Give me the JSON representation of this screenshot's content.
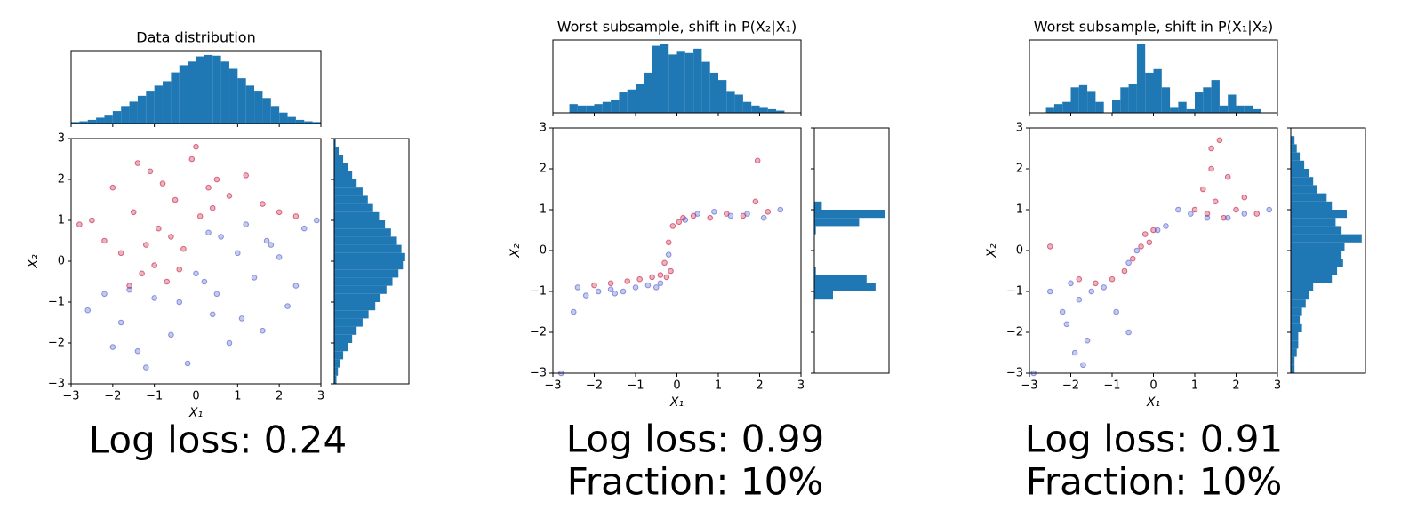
{
  "chart_data": [
    {
      "type": "scatter",
      "title": "Data distribution",
      "xlabel": "X₁",
      "ylabel": "X₂",
      "xlim": [
        -3,
        3
      ],
      "ylim": [
        -3,
        3
      ],
      "xticks": [
        {
          "value": -3,
          "label": "−3"
        },
        {
          "value": -2,
          "label": "−2"
        },
        {
          "value": -1,
          "label": "−1"
        },
        0,
        1,
        2,
        3
      ],
      "yticks": [
        {
          "value": -3,
          "label": "−3"
        },
        {
          "value": -2,
          "label": "−2"
        },
        {
          "value": -1,
          "label": "−1"
        },
        0,
        1,
        2,
        3
      ],
      "series": [
        {
          "color": "#c0002a",
          "x": [
            -2.5,
            -2.2,
            -2,
            -1.8,
            -1.5,
            -1.3,
            -1.1,
            -0.9,
            -0.7,
            -0.5,
            -0.3,
            -0.1,
            0.1,
            0.3,
            0.5,
            -2.8,
            -1.6,
            -1.2,
            -0.8,
            -0.4,
            0,
            0.4,
            0.8,
            1.2,
            1.6,
            2.0,
            2.4,
            -0.6,
            -1.0,
            -1.4
          ],
          "y": [
            1.0,
            0.5,
            1.8,
            0.2,
            1.2,
            -0.3,
            2.2,
            0.8,
            -0.5,
            1.5,
            0.3,
            2.5,
            1.1,
            1.8,
            2.0,
            0.9,
            -0.6,
            0.4,
            1.9,
            -0.2,
            2.8,
            1.3,
            1.6,
            2.1,
            1.4,
            1.2,
            1.1,
            0.6,
            -0.1,
            2.4
          ]
        },
        {
          "color": "#3a4bc8",
          "x": [
            -2.6,
            -2.2,
            -1.8,
            -1.4,
            -1,
            -0.6,
            -0.2,
            0.2,
            0.6,
            1,
            1.4,
            1.8,
            2.2,
            2.6,
            0.4,
            0.8,
            1.2,
            1.6,
            2,
            -1.2,
            -0.4,
            0,
            0.5,
            1.1,
            1.7,
            2.4,
            2.9,
            -2,
            -1.6,
            0.3
          ],
          "y": [
            -1.2,
            -0.8,
            -1.5,
            -2.2,
            -0.9,
            -1.8,
            -2.5,
            -0.5,
            0.6,
            0.2,
            -0.4,
            0.4,
            -1.1,
            0.8,
            -1.3,
            -2.0,
            0.9,
            -1.7,
            0.1,
            -2.6,
            -1.0,
            -0.3,
            -0.8,
            -1.4,
            0.5,
            -0.6,
            1.0,
            -2.1,
            -0.7,
            0.7
          ]
        }
      ],
      "top_histogram": {
        "color": "#1f77b4",
        "ylim": [
          0,
          100
        ],
        "bins": [
          -3,
          -2.8,
          -2.6,
          -2.4,
          -2.2,
          -2,
          -1.8,
          -1.6,
          -1.4,
          -1.2,
          -1,
          -0.8,
          -0.6,
          -0.4,
          -0.2,
          0,
          0.2,
          0.4,
          0.6,
          0.8,
          1,
          1.2,
          1.4,
          1.6,
          1.8,
          2,
          2.2,
          2.4,
          2.6,
          2.8,
          3
        ],
        "counts": [
          2,
          3,
          5,
          8,
          12,
          17,
          24,
          30,
          38,
          45,
          52,
          58,
          70,
          80,
          85,
          92,
          94,
          93,
          85,
          75,
          62,
          52,
          45,
          35,
          24,
          15,
          9,
          5,
          3,
          2
        ]
      },
      "right_histogram": {
        "color": "#1f77b4",
        "xlim": [
          0,
          100
        ],
        "bins": [
          -3,
          -2.8,
          -2.6,
          -2.4,
          -2.2,
          -2,
          -1.8,
          -1.6,
          -1.4,
          -1.2,
          -1,
          -0.8,
          -0.6,
          -0.4,
          -0.2,
          0,
          0.2,
          0.4,
          0.6,
          0.8,
          1,
          1.2,
          1.4,
          1.6,
          1.8,
          2,
          2.2,
          2.4,
          2.6,
          2.8,
          3
        ],
        "counts": [
          3,
          5,
          8,
          12,
          18,
          24,
          30,
          38,
          46,
          55,
          62,
          70,
          78,
          86,
          92,
          95,
          90,
          84,
          76,
          68,
          60,
          52,
          45,
          38,
          30,
          24,
          18,
          12,
          6,
          2
        ]
      },
      "captions": [
        "Log loss: 0.24"
      ]
    },
    {
      "type": "scatter",
      "title": "Worst subsample, shift in P(X₂|X₁)",
      "xlabel": "X₁",
      "ylabel": "X₂",
      "xlim": [
        -3,
        3
      ],
      "ylim": [
        -3,
        3
      ],
      "xticks": [
        {
          "value": -3,
          "label": "−3"
        },
        {
          "value": -2,
          "label": "−2"
        },
        {
          "value": -1,
          "label": "−1"
        },
        0,
        1,
        2,
        3
      ],
      "yticks": [
        {
          "value": -3,
          "label": "−3"
        },
        {
          "value": -2,
          "label": "−2"
        },
        {
          "value": -1,
          "label": "−1"
        },
        0,
        1,
        2,
        3
      ],
      "series": [
        {
          "color": "#c0002a",
          "x": [
            -2.0,
            -1.6,
            -1.2,
            -0.9,
            -0.6,
            -0.4,
            -0.3,
            -0.2,
            -0.15,
            -0.1,
            0.05,
            0.15,
            0.4,
            0.8,
            1.2,
            1.6,
            1.9,
            2.2,
            1.95,
            -0.25
          ],
          "y": [
            -0.85,
            -0.8,
            -0.75,
            -0.7,
            -0.65,
            -0.6,
            -0.3,
            0.2,
            -0.5,
            0.6,
            0.7,
            0.8,
            0.85,
            0.8,
            0.9,
            0.85,
            1.2,
            0.95,
            2.2,
            -0.65
          ]
        },
        {
          "color": "#3a4bc8",
          "x": [
            -2.8,
            -2.5,
            -2.2,
            -1.9,
            -1.6,
            -1.3,
            -1.0,
            -0.7,
            -0.4,
            -0.2,
            0.2,
            0.5,
            0.9,
            1.3,
            1.7,
            2.1,
            2.5,
            -2.4,
            -1.5,
            -0.5
          ],
          "y": [
            -3.0,
            -1.5,
            -1.1,
            -1.0,
            -0.95,
            -1.0,
            -0.9,
            -0.85,
            -0.8,
            -0.1,
            0.75,
            0.9,
            0.95,
            0.85,
            0.9,
            0.8,
            1.0,
            -0.9,
            -1.05,
            -0.9
          ]
        }
      ],
      "top_histogram": {
        "color": "#1f77b4",
        "ylim": [
          0,
          100
        ],
        "bins": [
          -2.6,
          -2.4,
          -2.2,
          -2,
          -1.8,
          -1.6,
          -1.4,
          -1.2,
          -1,
          -0.8,
          -0.6,
          -0.4,
          -0.2,
          0,
          0.2,
          0.4,
          0.6,
          0.8,
          1,
          1.2,
          1.4,
          1.6,
          1.8,
          2,
          2.2,
          2.4,
          2.6
        ],
        "counts": [
          12,
          10,
          10,
          12,
          15,
          18,
          28,
          32,
          40,
          55,
          92,
          95,
          80,
          85,
          82,
          88,
          70,
          55,
          45,
          30,
          25,
          15,
          10,
          8,
          5,
          3
        ]
      },
      "right_histogram": {
        "color": "#1f77b4",
        "xlim": [
          0,
          100
        ],
        "bins": [
          -1.2,
          -1,
          -0.8,
          -0.6,
          -0.4,
          -0.2,
          0,
          0.2,
          0.4,
          0.6,
          0.8,
          1,
          1.2
        ],
        "counts": [
          25,
          82,
          70,
          2,
          0,
          0,
          0,
          0,
          2,
          60,
          95,
          10
        ]
      },
      "captions": [
        "Log loss: 0.99",
        "Fraction: 10%"
      ]
    },
    {
      "type": "scatter",
      "title": "Worst subsample, shift in P(X₁|X₂)",
      "xlabel": "X₁",
      "ylabel": "X₂",
      "xlim": [
        -3,
        3
      ],
      "ylim": [
        -3,
        3
      ],
      "xticks": [
        {
          "value": -3,
          "label": "−3"
        },
        {
          "value": -2,
          "label": "−2"
        },
        {
          "value": -1,
          "label": "−1"
        },
        0,
        1,
        2,
        3
      ],
      "yticks": [
        {
          "value": -3,
          "label": "−3"
        },
        {
          "value": -2,
          "label": "−2"
        },
        {
          "value": -1,
          "label": "−1"
        },
        0,
        1,
        2,
        3
      ],
      "series": [
        {
          "color": "#c0002a",
          "x": [
            -2.5,
            -1.8,
            -1.4,
            -1.0,
            -0.7,
            -0.5,
            -0.3,
            -0.2,
            -0.1,
            0.0,
            1.0,
            1.2,
            1.4,
            1.5,
            1.6,
            1.8,
            2.0,
            2.2,
            2.5,
            1.4,
            1.7,
            1.3
          ],
          "y": [
            0.1,
            -0.7,
            -0.8,
            -0.7,
            -0.5,
            -0.2,
            0.1,
            0.4,
            0.2,
            0.5,
            1.0,
            1.5,
            2.5,
            1.2,
            2.7,
            1.8,
            1.0,
            1.3,
            0.9,
            2.0,
            0.8,
            0.9
          ]
        },
        {
          "color": "#3a4bc8",
          "x": [
            -2.9,
            -2.5,
            -2.2,
            -2.0,
            -1.9,
            -1.8,
            -1.6,
            -1.5,
            -1.2,
            -0.9,
            -0.6,
            -0.4,
            0.1,
            0.3,
            0.6,
            0.9,
            1.3,
            1.8,
            2.2,
            2.8,
            -1.7,
            -2.1,
            -0.6
          ],
          "y": [
            -3.0,
            -1.0,
            -1.5,
            -0.8,
            -2.5,
            -1.2,
            -2.2,
            -1.0,
            -0.9,
            -1.5,
            -0.3,
            0.0,
            0.5,
            0.6,
            1.0,
            0.9,
            0.8,
            0.8,
            0.9,
            1.0,
            -2.8,
            -1.8,
            -2.0
          ]
        }
      ],
      "top_histogram": {
        "color": "#1f77b4",
        "ylim": [
          0,
          100
        ],
        "bins": [
          -2.6,
          -2.4,
          -2.2,
          -2,
          -1.8,
          -1.6,
          -1.4,
          -1.2,
          -1,
          -0.8,
          -0.6,
          -0.4,
          -0.2,
          0,
          0.2,
          0.4,
          0.6,
          0.8,
          1,
          1.2,
          1.4,
          1.6,
          1.8,
          2,
          2.2,
          2.4,
          2.6
        ],
        "counts": [
          8,
          12,
          15,
          35,
          38,
          30,
          15,
          0,
          18,
          35,
          40,
          95,
          55,
          60,
          35,
          8,
          15,
          5,
          28,
          35,
          45,
          10,
          25,
          10,
          10,
          5
        ]
      },
      "right_histogram": {
        "color": "#1f77b4",
        "xlim": [
          0,
          100
        ],
        "bins": [
          -3,
          -2.8,
          -2.6,
          -2.4,
          -2.2,
          -2,
          -1.8,
          -1.6,
          -1.4,
          -1.2,
          -1,
          -0.8,
          -0.6,
          -0.4,
          -0.2,
          0,
          0.2,
          0.4,
          0.6,
          0.8,
          1,
          1.2,
          1.4,
          1.6,
          1.8,
          2,
          2.2,
          2.4,
          2.6,
          2.8
        ],
        "counts": [
          5,
          5,
          8,
          10,
          10,
          15,
          12,
          15,
          20,
          25,
          30,
          55,
          62,
          70,
          68,
          72,
          95,
          68,
          60,
          75,
          55,
          48,
          35,
          30,
          25,
          18,
          12,
          8,
          5
        ]
      },
      "captions": [
        "Log loss: 0.91",
        "Fraction: 10%"
      ]
    }
  ]
}
